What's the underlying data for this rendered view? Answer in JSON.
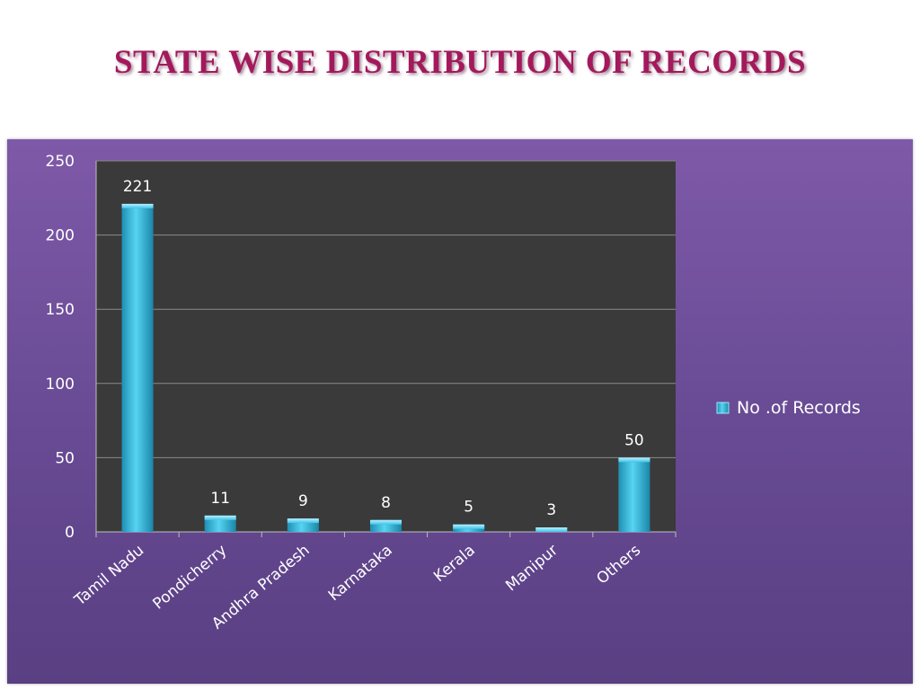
{
  "slide": {
    "title": "STATE WISE DISTRIBUTION OF RECORDS"
  },
  "chart_data": {
    "type": "bar",
    "title": "STATE WISE DISTRIBUTION OF RECORDS",
    "xlabel": "",
    "ylabel": "",
    "categories": [
      "Tamil Nadu",
      "Pondicherry",
      "Andhra Pradesh",
      "Karnataka",
      "Kerala",
      "Manipur",
      "Others"
    ],
    "series": [
      {
        "name": "No .of Records",
        "values": [
          221,
          11,
          9,
          8,
          5,
          3,
          50
        ]
      }
    ],
    "ylim": [
      0,
      250
    ],
    "yticks": [
      0,
      50,
      100,
      150,
      200,
      250
    ],
    "grid": true,
    "data_labels": true,
    "legend_position": "right",
    "colors": {
      "bar": "#3ec3e6",
      "plot_background": "#3a3a3a",
      "panel_background": "#6f4f9c",
      "title": "#a3195b"
    }
  }
}
